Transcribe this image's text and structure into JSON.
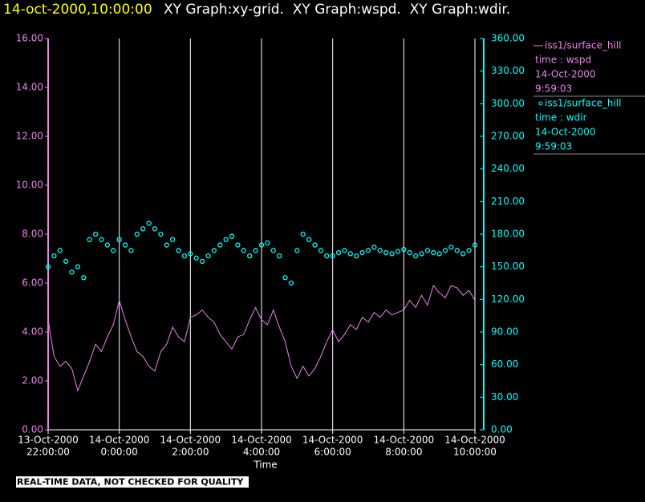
{
  "chart_data": {
    "type": "line",
    "title": "14-oct-2000,10:00:00",
    "subtitle": "XY Graph:xy-grid.  XY Graph:wspd.  XY Graph:wdir.",
    "x_label": "Time",
    "footer": "REAL-TIME DATA, NOT CHECKED FOR QUALITY",
    "legend": "right",
    "grid": true,
    "x": [
      "2000-10-13 22:00",
      "2000-10-13 22:10",
      "2000-10-13 22:20",
      "2000-10-13 22:30",
      "2000-10-13 22:40",
      "2000-10-13 22:50",
      "2000-10-13 23:00",
      "2000-10-13 23:10",
      "2000-10-13 23:20",
      "2000-10-13 23:30",
      "2000-10-13 23:40",
      "2000-10-13 23:50",
      "2000-10-14 00:00",
      "2000-10-14 00:10",
      "2000-10-14 00:20",
      "2000-10-14 00:30",
      "2000-10-14 00:40",
      "2000-10-14 00:50",
      "2000-10-14 01:00",
      "2000-10-14 01:10",
      "2000-10-14 01:20",
      "2000-10-14 01:30",
      "2000-10-14 01:40",
      "2000-10-14 01:50",
      "2000-10-14 02:00",
      "2000-10-14 02:10",
      "2000-10-14 02:20",
      "2000-10-14 02:30",
      "2000-10-14 02:40",
      "2000-10-14 02:50",
      "2000-10-14 03:00",
      "2000-10-14 03:10",
      "2000-10-14 03:20",
      "2000-10-14 03:30",
      "2000-10-14 03:40",
      "2000-10-14 03:50",
      "2000-10-14 04:00",
      "2000-10-14 04:10",
      "2000-10-14 04:20",
      "2000-10-14 04:30",
      "2000-10-14 04:40",
      "2000-10-14 04:50",
      "2000-10-14 05:00",
      "2000-10-14 05:10",
      "2000-10-14 05:20",
      "2000-10-14 05:30",
      "2000-10-14 05:40",
      "2000-10-14 05:50",
      "2000-10-14 06:00",
      "2000-10-14 06:10",
      "2000-10-14 06:20",
      "2000-10-14 06:30",
      "2000-10-14 06:40",
      "2000-10-14 06:50",
      "2000-10-14 07:00",
      "2000-10-14 07:10",
      "2000-10-14 07:20",
      "2000-10-14 07:30",
      "2000-10-14 07:40",
      "2000-10-14 07:50",
      "2000-10-14 08:00",
      "2000-10-14 08:10",
      "2000-10-14 08:20",
      "2000-10-14 08:30",
      "2000-10-14 08:40",
      "2000-10-14 08:50",
      "2000-10-14 09:00",
      "2000-10-14 09:10",
      "2000-10-14 09:20",
      "2000-10-14 09:30",
      "2000-10-14 09:40",
      "2000-10-14 09:50",
      "2000-10-14 10:00"
    ],
    "xlim": [
      "2000-10-13 22:00",
      "2000-10-14 10:00"
    ],
    "xticks": [
      {
        "value": "2000-10-13 22:00",
        "label": [
          "13-Oct-2000",
          "22:00:00"
        ]
      },
      {
        "value": "2000-10-14 00:00",
        "label": [
          "14-Oct-2000",
          "0:00:00"
        ]
      },
      {
        "value": "2000-10-14 02:00",
        "label": [
          "14-Oct-2000",
          "2:00:00"
        ]
      },
      {
        "value": "2000-10-14 04:00",
        "label": [
          "14-Oct-2000",
          "4:00:00"
        ]
      },
      {
        "value": "2000-10-14 06:00",
        "label": [
          "14-Oct-2000",
          "6:00:00"
        ]
      },
      {
        "value": "2000-10-14 08:00",
        "label": [
          "14-Oct-2000",
          "8:00:00"
        ]
      },
      {
        "value": "2000-10-14 10:00",
        "label": [
          "14-Oct-2000",
          "10:00:00"
        ]
      }
    ],
    "ylim": [
      0,
      16
    ],
    "yticks": [
      {
        "value": 0,
        "label": "0.00"
      },
      {
        "value": 2,
        "label": "2.00"
      },
      {
        "value": 4,
        "label": "4.00"
      },
      {
        "value": 6,
        "label": "6.00"
      },
      {
        "value": 8,
        "label": "8.00"
      },
      {
        "value": 10,
        "label": "10.00"
      },
      {
        "value": 12,
        "label": "12.00"
      },
      {
        "value": 14,
        "label": "14.00"
      },
      {
        "value": 16,
        "label": "16.00"
      }
    ],
    "y2lim": [
      0,
      360
    ],
    "y2ticks": [
      {
        "value": 0,
        "label": "0.00"
      },
      {
        "value": 30,
        "label": "30.00"
      },
      {
        "value": 60,
        "label": "60.00"
      },
      {
        "value": 90,
        "label": "90.00"
      },
      {
        "value": 120,
        "label": "120.00"
      },
      {
        "value": 150,
        "label": "150.00"
      },
      {
        "value": 180,
        "label": "180.00"
      },
      {
        "value": 210,
        "label": "210.00"
      },
      {
        "value": 240,
        "label": "240.00"
      },
      {
        "value": 270,
        "label": "270.00"
      },
      {
        "value": 300,
        "label": "300.00"
      },
      {
        "value": 330,
        "label": "330.00"
      },
      {
        "value": 360,
        "label": "360.00"
      }
    ],
    "series": [
      {
        "name": "iss1/surface_hill",
        "type": "line",
        "color": "#ee82ee",
        "axis": "y",
        "legend_lines": [
          "time : wspd",
          "14-Oct-2000",
          "9:59:03"
        ],
        "values": [
          4.5,
          3.0,
          2.6,
          2.8,
          2.5,
          1.6,
          2.2,
          2.8,
          3.5,
          3.2,
          3.8,
          4.3,
          5.3,
          4.5,
          3.8,
          3.2,
          3.0,
          2.6,
          2.4,
          3.2,
          3.5,
          4.2,
          3.8,
          3.6,
          4.6,
          4.7,
          4.9,
          4.6,
          4.4,
          3.9,
          3.6,
          3.3,
          3.8,
          3.9,
          4.5,
          5.0,
          4.5,
          4.3,
          4.9,
          4.2,
          3.6,
          2.6,
          2.1,
          2.6,
          2.2,
          2.5,
          3.0,
          3.6,
          4.1,
          3.6,
          3.9,
          4.3,
          4.1,
          4.6,
          4.4,
          4.8,
          4.6,
          4.9,
          4.7,
          4.8,
          4.9,
          5.3,
          5.0,
          5.5,
          5.1,
          5.9,
          5.6,
          5.4,
          5.9,
          5.8,
          5.5,
          5.7,
          5.3
        ]
      },
      {
        "name": "iss1/surface_hill",
        "type": "scatter",
        "color": "#00ffff",
        "axis": "y2",
        "legend_lines": [
          "time : wdir",
          "14-Oct-2000",
          "9:59:03"
        ],
        "values": [
          150,
          160,
          165,
          155,
          145,
          150,
          140,
          175,
          180,
          175,
          170,
          165,
          175,
          170,
          165,
          180,
          185,
          190,
          185,
          180,
          170,
          175,
          165,
          160,
          162,
          158,
          155,
          160,
          165,
          170,
          175,
          178,
          170,
          165,
          160,
          165,
          170,
          172,
          165,
          160,
          140,
          135,
          165,
          180,
          175,
          170,
          165,
          160,
          160,
          163,
          165,
          162,
          160,
          163,
          165,
          168,
          165,
          163,
          162,
          164,
          166,
          163,
          160,
          162,
          165,
          163,
          162,
          165,
          168,
          165,
          162,
          165,
          170
        ]
      }
    ]
  }
}
